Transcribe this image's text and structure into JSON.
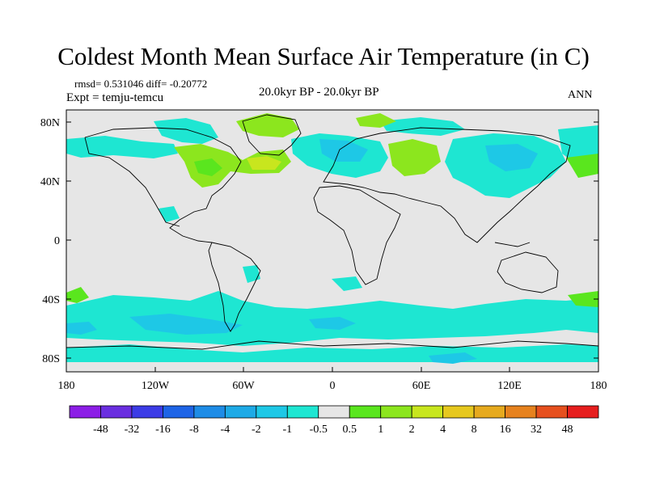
{
  "title": "Coldest Month Mean Surface Air Temperature (in C)",
  "stats": "rmsd= 0.531046 diff= -0.20772",
  "experiment": "Expt = temju-temcu",
  "period": "20.0kyr BP - 20.0kyr BP",
  "season": "ANN",
  "map": {
    "lat_labels": [
      "80N",
      "40N",
      "0",
      "40S",
      "80S"
    ],
    "lon_labels": [
      "180",
      "120W",
      "60W",
      "0",
      "60E",
      "120E",
      "180"
    ]
  },
  "colorbar": {
    "colors": [
      "#8c1ee6",
      "#6a2ee0",
      "#3c3ce6",
      "#1e64e6",
      "#1e8ce6",
      "#1eaae6",
      "#1ec8e6",
      "#1ee6d2",
      "#e6e6e6",
      "#5ae61e",
      "#8ce61e",
      "#c8e61e",
      "#e6c81e",
      "#e6aa1e",
      "#e6821e",
      "#e6501e",
      "#e61e1e"
    ],
    "labels": [
      "-48",
      "-32",
      "-16",
      "-8",
      "-4",
      "-2",
      "-1",
      "-0.5",
      "0.5",
      "1",
      "2",
      "4",
      "8",
      "16",
      "32",
      "48"
    ]
  }
}
